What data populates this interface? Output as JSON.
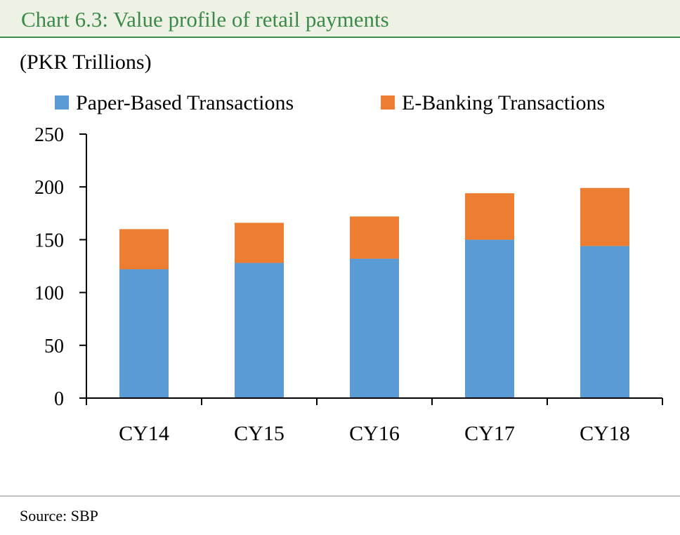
{
  "header": {
    "title": "Chart 6.3: Value profile of retail payments",
    "unit": "(PKR Trillions)"
  },
  "footer": {
    "source": "Source:  SBP"
  },
  "colors": {
    "title": "#3b8a4a",
    "paper": "#5b9bd5",
    "ebanking": "#ed7d31"
  },
  "chart_data": {
    "type": "bar",
    "stacked": true,
    "categories": [
      "CY14",
      "CY15",
      "CY16",
      "CY17",
      "CY18"
    ],
    "series": [
      {
        "name": "Paper-Based Transactions",
        "values": [
          122,
          128,
          132,
          150,
          144
        ]
      },
      {
        "name": "E-Banking Transactions",
        "values": [
          38,
          38,
          40,
          44,
          55
        ]
      }
    ],
    "ylim": [
      0,
      250
    ],
    "yticks": [
      "0",
      "50",
      "100",
      "150",
      "200",
      "250"
    ],
    "legend": "top",
    "grid": false
  }
}
